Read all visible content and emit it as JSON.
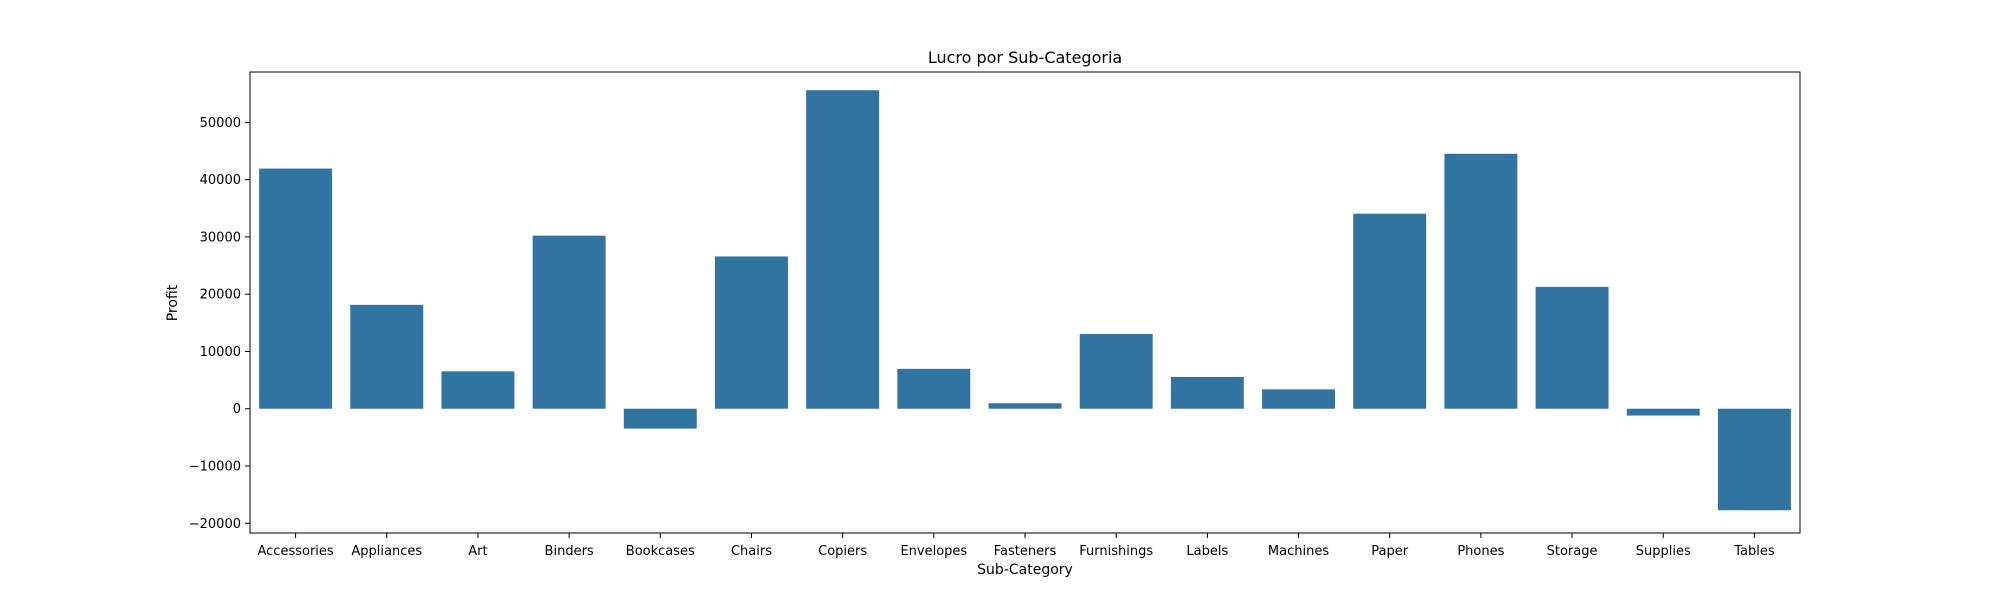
{
  "chart_data": {
    "type": "bar",
    "title": "Lucro por Sub-Categoria",
    "xlabel": "Sub-Category",
    "ylabel": "Profit",
    "categories": [
      "Accessories",
      "Appliances",
      "Art",
      "Binders",
      "Bookcases",
      "Chairs",
      "Copiers",
      "Envelopes",
      "Fasteners",
      "Furnishings",
      "Labels",
      "Machines",
      "Paper",
      "Phones",
      "Storage",
      "Supplies",
      "Tables"
    ],
    "values": [
      41937,
      18138,
      6528,
      30222,
      -3473,
      26590,
      55618,
      6964,
      950,
      13059,
      5546,
      3385,
      34054,
      44516,
      21279,
      -1189,
      -17725
    ],
    "ylim": [
      -21700,
      58800
    ],
    "yticks": [
      -20000,
      -10000,
      0,
      10000,
      20000,
      30000,
      40000,
      50000
    ],
    "ytick_labels": [
      "−20000",
      "−10000",
      "0",
      "10000",
      "20000",
      "30000",
      "40000",
      "50000"
    ],
    "grid": false,
    "color": "#3274a1"
  }
}
